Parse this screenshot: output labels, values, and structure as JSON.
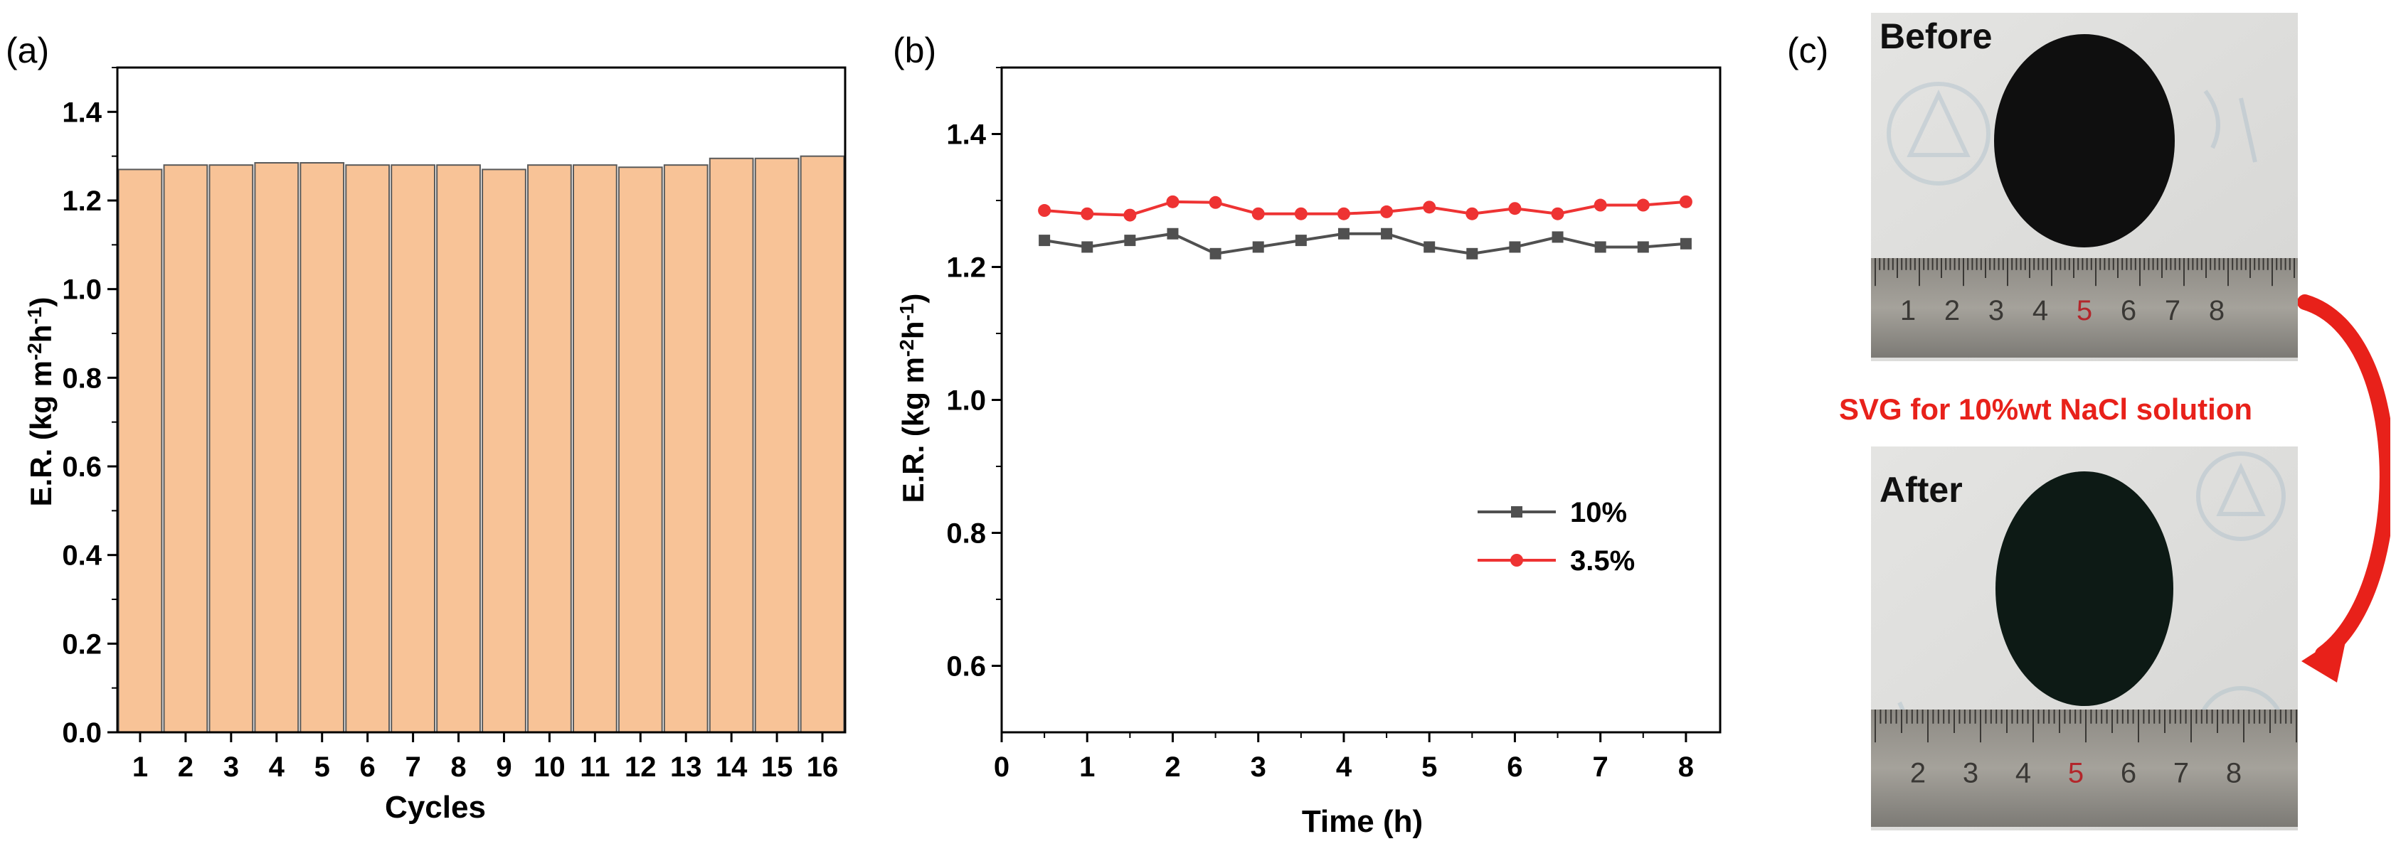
{
  "panels": {
    "a": {
      "label": "(a)"
    },
    "b": {
      "label": "(b)"
    },
    "c": {
      "label": "(c)"
    }
  },
  "chart_data": [
    {
      "type": "bar",
      "title": "",
      "xlabel": "Cycles",
      "ylabel_main": "E.R. (kg m",
      "ylabel_sup1": "-2",
      "ylabel_mid": "h",
      "ylabel_sup2": "-1",
      "ylabel_end": ")",
      "categories": [
        "1",
        "2",
        "3",
        "4",
        "5",
        "6",
        "7",
        "8",
        "9",
        "10",
        "11",
        "12",
        "13",
        "14",
        "15",
        "16"
      ],
      "values": [
        1.27,
        1.28,
        1.28,
        1.285,
        1.285,
        1.28,
        1.28,
        1.28,
        1.27,
        1.28,
        1.28,
        1.275,
        1.28,
        1.295,
        1.295,
        1.3
      ],
      "ylim": [
        0,
        1.5
      ],
      "yticks": [
        "0.0",
        "0.2",
        "0.4",
        "0.6",
        "0.8",
        "1.0",
        "1.2",
        "1.4"
      ],
      "ytick_values": [
        0,
        0.2,
        0.4,
        0.6,
        0.8,
        1.0,
        1.2,
        1.4
      ],
      "bar_color": "#f8c397",
      "bar_edge": "#5a5a5a"
    },
    {
      "type": "line",
      "title": "",
      "xlabel": "Time (h)",
      "ylabel_main": "E.R. (kg m",
      "ylabel_sup1": "-2",
      "ylabel_mid": "h",
      "ylabel_sup2": "-1",
      "ylabel_end": ")",
      "xlim": [
        0,
        8.4
      ],
      "ylim": [
        0.5,
        1.5
      ],
      "xticks": [
        "0",
        "1",
        "2",
        "3",
        "4",
        "5",
        "6",
        "7",
        "8"
      ],
      "xtick_values": [
        0,
        1,
        2,
        3,
        4,
        5,
        6,
        7,
        8
      ],
      "yticks": [
        "0.6",
        "0.8",
        "1.0",
        "1.2",
        "1.4"
      ],
      "ytick_values": [
        0.6,
        0.8,
        1.0,
        1.2,
        1.4
      ],
      "x": [
        0.5,
        1,
        1.5,
        2,
        2.5,
        3,
        3.5,
        4,
        4.5,
        5,
        5.5,
        6,
        6.5,
        7,
        7.5,
        8
      ],
      "series": [
        {
          "name": "10%",
          "color": "#505050",
          "marker": "square",
          "values": [
            1.24,
            1.23,
            1.24,
            1.25,
            1.22,
            1.23,
            1.24,
            1.25,
            1.25,
            1.23,
            1.22,
            1.23,
            1.245,
            1.23,
            1.23,
            1.235
          ]
        },
        {
          "name": "3.5%",
          "color": "#ee3333",
          "marker": "circle",
          "values": [
            1.285,
            1.28,
            1.278,
            1.298,
            1.297,
            1.28,
            1.28,
            1.28,
            1.283,
            1.29,
            1.28,
            1.288,
            1.28,
            1.293,
            1.293,
            1.298
          ]
        }
      ],
      "legend_position": "center-right"
    }
  ],
  "photos": {
    "before_label": "Before",
    "after_label": "After",
    "annotation": "SVG for 10%wt NaCl solution",
    "ruler_top_numbers": [
      "1",
      "2",
      "3",
      "4",
      "5",
      "6",
      "7",
      "8"
    ],
    "ruler_bottom_numbers": [
      "2",
      "3",
      "4",
      "5",
      "6",
      "7",
      "8"
    ],
    "arrow_color": "#e8211a"
  }
}
